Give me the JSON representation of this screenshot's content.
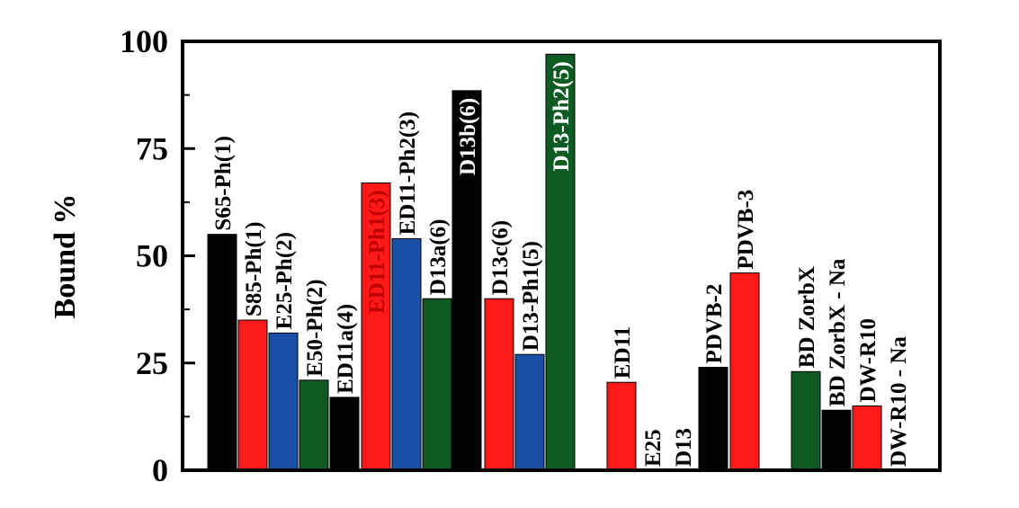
{
  "chart_data": {
    "type": "bar",
    "title": "",
    "xlabel": "",
    "ylabel": "Bound %",
    "ylim": [
      0,
      100
    ],
    "yticks": [
      "0",
      "25",
      "50",
      "75",
      "100"
    ],
    "grid": false,
    "legend": "none",
    "colors": {
      "black": "#000000",
      "red": "#ff1a1a",
      "blue": "#1a4fa8",
      "green": "#0d5a22"
    },
    "bars": [
      {
        "label": "S65-Ph(1)",
        "value": 55,
        "color": "black"
      },
      {
        "label": "S85-Ph(1)",
        "value": 35,
        "color": "red"
      },
      {
        "label": "E25-Ph(2)",
        "value": 32,
        "color": "blue"
      },
      {
        "label": "E50-Ph(2)",
        "value": 21,
        "color": "green"
      },
      {
        "label": "ED11a(4)",
        "value": 17,
        "color": "black"
      },
      {
        "label": "ED11-Ph1(3)",
        "value": 67,
        "color": "red"
      },
      {
        "label": "ED11-Ph2(3)",
        "value": 54,
        "color": "blue"
      },
      {
        "label": "D13a(6)",
        "value": 40,
        "color": "green"
      },
      {
        "label": "D13b(6)",
        "value": 88.5,
        "color": "black"
      },
      {
        "label": "D13c(6)",
        "value": 40,
        "color": "red"
      },
      {
        "label": "D13-Ph1(5)",
        "value": 27,
        "color": "blue"
      },
      {
        "label": "D13-Ph2(5)",
        "value": 97,
        "color": "green"
      },
      {
        "label": "ED11",
        "value": 20.5,
        "color": "red"
      },
      {
        "label": "E25",
        "value": 0,
        "color": "red"
      },
      {
        "label": "D13",
        "value": 0,
        "color": "red"
      },
      {
        "label": "PDVB-2",
        "value": 24,
        "color": "black"
      },
      {
        "label": "PDVB-3",
        "value": 46,
        "color": "red"
      },
      {
        "label": "BD ZorbX",
        "value": 23,
        "color": "green"
      },
      {
        "label": "BD ZorbX - Na",
        "value": 14,
        "color": "black"
      },
      {
        "label": "DW-R10",
        "value": 15,
        "color": "red"
      },
      {
        "label": "DW-R10 - Na",
        "value": 0,
        "color": "red"
      }
    ]
  }
}
